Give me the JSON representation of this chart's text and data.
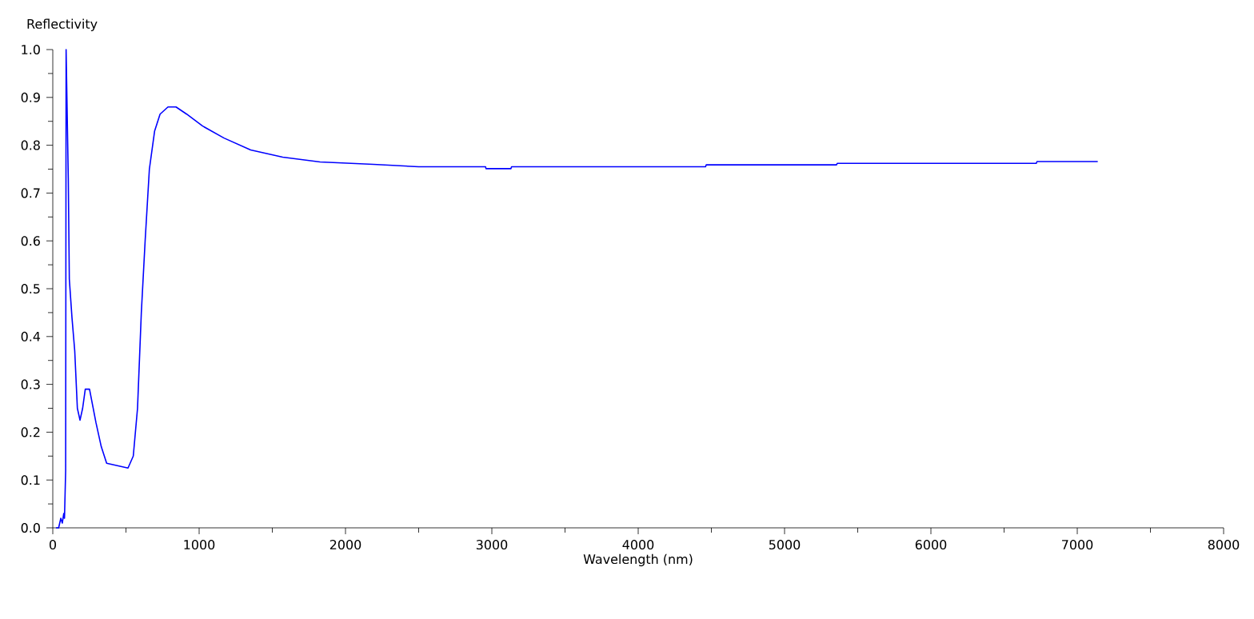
{
  "chart_data": {
    "type": "line",
    "xlabel": "Wavelength (nm)",
    "ylabel": "Reflectivity",
    "xlim": [
      0,
      8000
    ],
    "ylim": [
      0,
      1.0
    ],
    "xticks": [
      0,
      1000,
      2000,
      3000,
      4000,
      5000,
      6000,
      7000,
      8000
    ],
    "yticks": [
      {
        "value": 0,
        "label": "0.0"
      },
      {
        "value": 0.1,
        "label": "0.1"
      },
      {
        "value": 0.2,
        "label": "0.2"
      },
      {
        "value": 0.3,
        "label": "0.3"
      },
      {
        "value": 0.4,
        "label": "0.4"
      },
      {
        "value": 0.5,
        "label": "0.5"
      },
      {
        "value": 0.6,
        "label": "0.6"
      },
      {
        "value": 0.7,
        "label": "0.7"
      },
      {
        "value": 0.8,
        "label": "0.8"
      },
      {
        "value": 0.9,
        "label": "0.9"
      },
      {
        "value": 1.0,
        "label": "1.0"
      }
    ],
    "grid": false,
    "marker": "none",
    "line_style": "solid",
    "series": [
      {
        "color": "#0000ff",
        "x": [
          22,
          40,
          55,
          65,
          75,
          80,
          88,
          91,
          106,
          113,
          131,
          150,
          168,
          186,
          204,
          222,
          251,
          295,
          331,
          368,
          441,
          514,
          550,
          579,
          605,
          631,
          660,
          696,
          733,
          787,
          842,
          915,
          1024,
          1170,
          1352,
          1571,
          1826,
          2190,
          2500,
          2957,
          2960,
          3130,
          3135,
          4460,
          4465,
          5355,
          5360,
          6720,
          6725,
          7140
        ],
        "values": [
          0,
          0,
          0.02,
          0.01,
          0.03,
          0.02,
          0.12,
          1.0,
          0.73,
          0.52,
          0.44,
          0.37,
          0.25,
          0.225,
          0.25,
          0.29,
          0.29,
          0.22,
          0.17,
          0.135,
          0.13,
          0.125,
          0.15,
          0.25,
          0.45,
          0.6,
          0.75,
          0.83,
          0.865,
          0.88,
          0.88,
          0.865,
          0.84,
          0.815,
          0.79,
          0.775,
          0.765,
          0.76,
          0.755,
          0.755,
          0.751,
          0.751,
          0.755,
          0.755,
          0.759,
          0.759,
          0.762,
          0.762,
          0.766,
          0.766
        ]
      }
    ]
  }
}
